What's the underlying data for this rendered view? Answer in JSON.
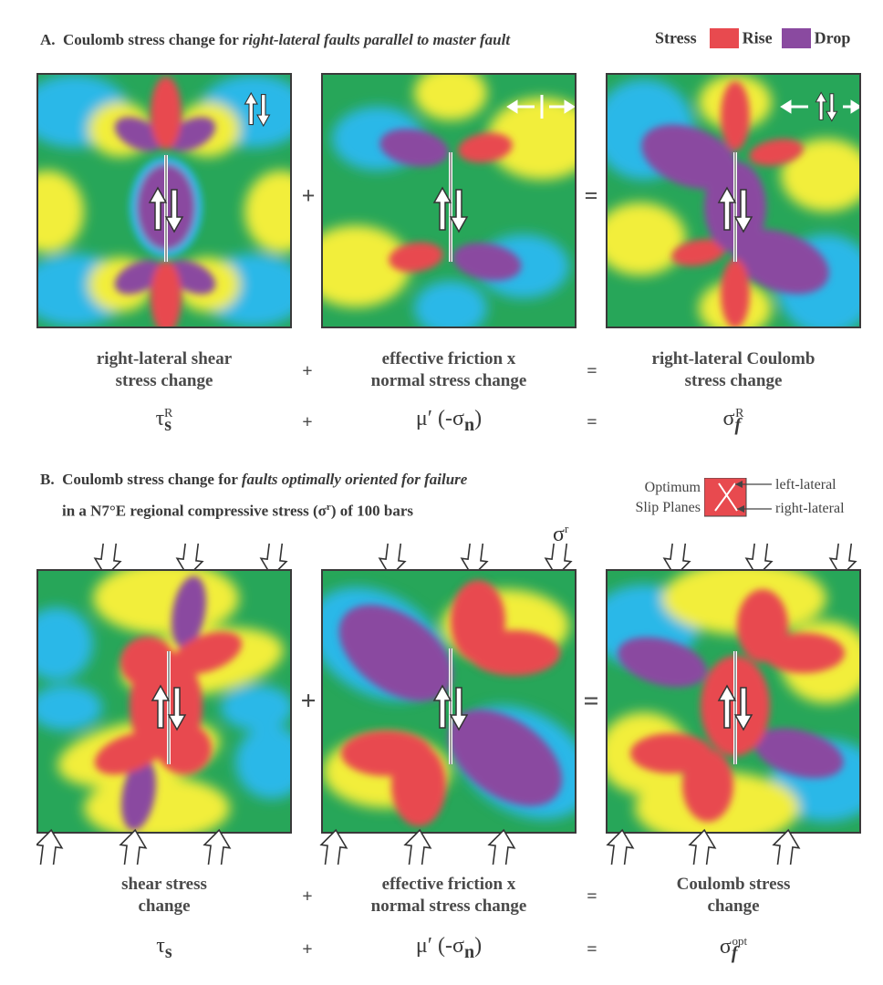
{
  "section_a": {
    "letter": "A.",
    "title_plain": "Coulomb stress change for ",
    "title_italic": "right-lateral faults parallel to master fault",
    "legend": {
      "title": "Stress",
      "rise_label": "Rise",
      "drop_label": "Drop",
      "rise_color": "#e84a4f",
      "drop_color": "#8a4aa0"
    },
    "captions": {
      "left_line1": "right-lateral shear",
      "left_line2": "stress change",
      "middle_line1": "effective friction  x",
      "middle_line2": "normal stress change",
      "right_line1": "right-lateral Coulomb",
      "right_line2": "stress change"
    },
    "formulas": {
      "left_main": "τ",
      "left_sub": "s",
      "left_sup": "R",
      "middle_main": "μ′ (-σ",
      "middle_sub": "n",
      "middle_close": ")",
      "right_main": "σ",
      "right_sub": "f",
      "right_sup": "R"
    }
  },
  "section_b": {
    "letter": "B.",
    "title_plain": "Coulomb stress change for ",
    "title_italic": "faults optimally oriented for failure",
    "title_line2": "in a N7°E regional compressive stress (σ",
    "title_line2_sup": "r",
    "title_line2_end": ") of 100 bars",
    "sigma_r_main": "σ",
    "sigma_r_sup": "r",
    "optimum": {
      "label_line1": "Optimum",
      "label_line2": "Slip Planes",
      "left_lateral": "left-lateral",
      "right_lateral": "right-lateral"
    },
    "captions": {
      "left_line1": "shear stress",
      "left_line2": "change",
      "middle_line1": "effective friction  x",
      "middle_line2": "normal stress change",
      "right_line1": "Coulomb stress",
      "right_line2": "change"
    },
    "formulas": {
      "left_main": "τ",
      "left_sub": "s",
      "middle_main": "μ′ (-σ",
      "middle_sub": "n",
      "middle_close": ")",
      "right_main": "σ",
      "right_sub": "f",
      "right_sup": "opt"
    }
  },
  "operators": {
    "plus": "+",
    "equals": "="
  },
  "colors": {
    "background_green": "#27a659",
    "cyan": "#2bb8e8",
    "yellow": "#f2ee3a",
    "red": "#e84a4f",
    "purple": "#8a4aa0"
  }
}
